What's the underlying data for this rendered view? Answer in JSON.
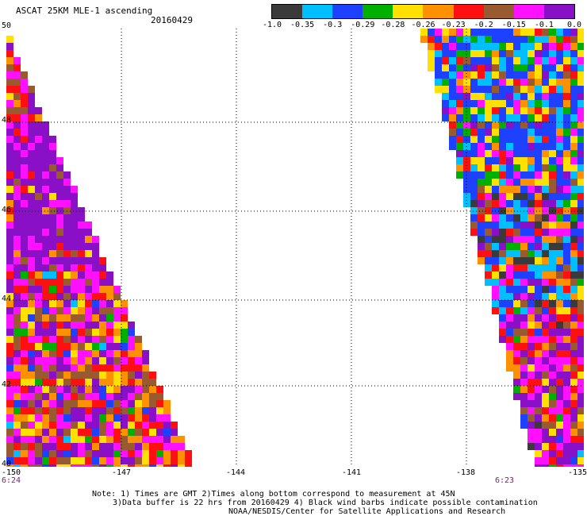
{
  "header": {
    "title": "ASCAT 25KM MLE-1 ascending",
    "date": "20160429"
  },
  "colorbar": {
    "colors": [
      "#3a3a3a",
      "#00bfff",
      "#1e40ff",
      "#00b000",
      "#ffe000",
      "#ff9000",
      "#ff1010",
      "#9a5a30",
      "#ff10ff",
      "#8a10c8"
    ],
    "ticks": [
      "-1.0",
      "-0.35",
      "-0.3",
      "-0.29",
      "-0.28",
      "-0.26",
      "-0.23",
      "-0.2",
      "-0.15",
      "-0.1",
      "0.0"
    ]
  },
  "axes": {
    "y_labels": [
      "50",
      "48",
      "46",
      "44",
      "42",
      "40"
    ],
    "x_labels": [
      "-150",
      "-147",
      "-144",
      "-141",
      "-138",
      "-135"
    ],
    "left_time": "6:24",
    "right_time": "6:23"
  },
  "notes": {
    "line1": "Note: 1) Times are GMT 2)Times along bottom correspond to measurement at 45N",
    "line2": "3)Data buffer is 22 hrs from 20160429 4) Black wind barbs indicate possible contamination",
    "line3": "NOAA/NESDIS/Center for Satellite Applications and Research"
  }
}
